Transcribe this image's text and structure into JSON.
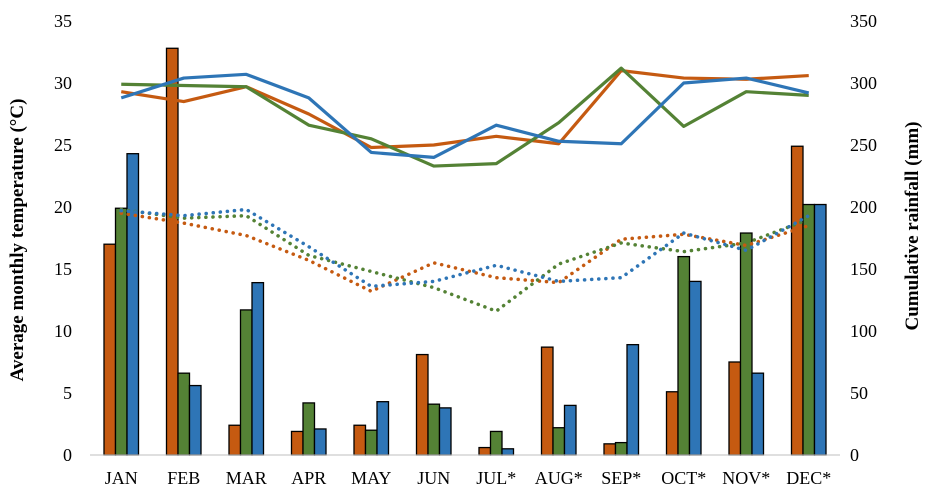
{
  "chart_data": {
    "type": "bar",
    "categories": [
      "JAN",
      "FEB",
      "MAR",
      "APR",
      "MAY",
      "JUN",
      "JUL*",
      "AUG*",
      "SEP*",
      "OCT*",
      "NOV*",
      "DEC*"
    ],
    "left_axis": {
      "label": "Average monthly temperature (°C)",
      "ylim": [
        0,
        35
      ],
      "ticks": [
        0,
        5,
        10,
        15,
        20,
        25,
        30,
        35
      ]
    },
    "right_axis": {
      "label": "Cumulative rainfall (mm)",
      "ylim": [
        0,
        350
      ],
      "ticks": [
        0,
        50,
        100,
        150,
        200,
        250,
        300,
        350
      ]
    },
    "colors": [
      "#C55A11",
      "#548235",
      "#2E75B6"
    ],
    "rainfall_bars": [
      {
        "axis": "right",
        "values": [
          170,
          328,
          24,
          19,
          24,
          81,
          6,
          87,
          9,
          51,
          75,
          249
        ]
      },
      {
        "axis": "right",
        "values": [
          199,
          66,
          117,
          42,
          20,
          41,
          19,
          22,
          10,
          160,
          179,
          202
        ]
      },
      {
        "axis": "right",
        "values": [
          243,
          56,
          139,
          21,
          43,
          38,
          5,
          40,
          89,
          140,
          66,
          202
        ]
      }
    ],
    "max_temperature_lines": [
      {
        "axis": "left",
        "values": [
          29.3,
          28.5,
          29.7,
          27.5,
          24.8,
          25.0,
          25.7,
          25.1,
          31.0,
          30.4,
          30.3,
          30.6
        ]
      },
      {
        "axis": "left",
        "values": [
          29.9,
          29.8,
          29.7,
          26.6,
          25.5,
          23.3,
          23.5,
          26.8,
          31.2,
          26.5,
          29.3,
          29.0
        ]
      },
      {
        "axis": "left",
        "values": [
          28.8,
          30.4,
          30.7,
          28.8,
          24.4,
          24.0,
          26.6,
          25.3,
          25.1,
          30.0,
          30.4,
          29.2
        ]
      }
    ],
    "min_temperature_lines": [
      {
        "axis": "left",
        "values": [
          19.5,
          18.7,
          17.7,
          15.7,
          13.2,
          15.5,
          14.3,
          13.9,
          17.4,
          17.8,
          16.9,
          18.5
        ]
      },
      {
        "axis": "left",
        "values": [
          19.8,
          19.1,
          19.3,
          16.1,
          14.8,
          13.5,
          11.6,
          15.4,
          17.1,
          16.4,
          17.1,
          19.0
        ]
      },
      {
        "axis": "left",
        "values": [
          19.7,
          19.3,
          19.8,
          16.8,
          13.6,
          14.0,
          15.3,
          14.0,
          14.3,
          17.9,
          16.5,
          19.3
        ]
      }
    ]
  }
}
